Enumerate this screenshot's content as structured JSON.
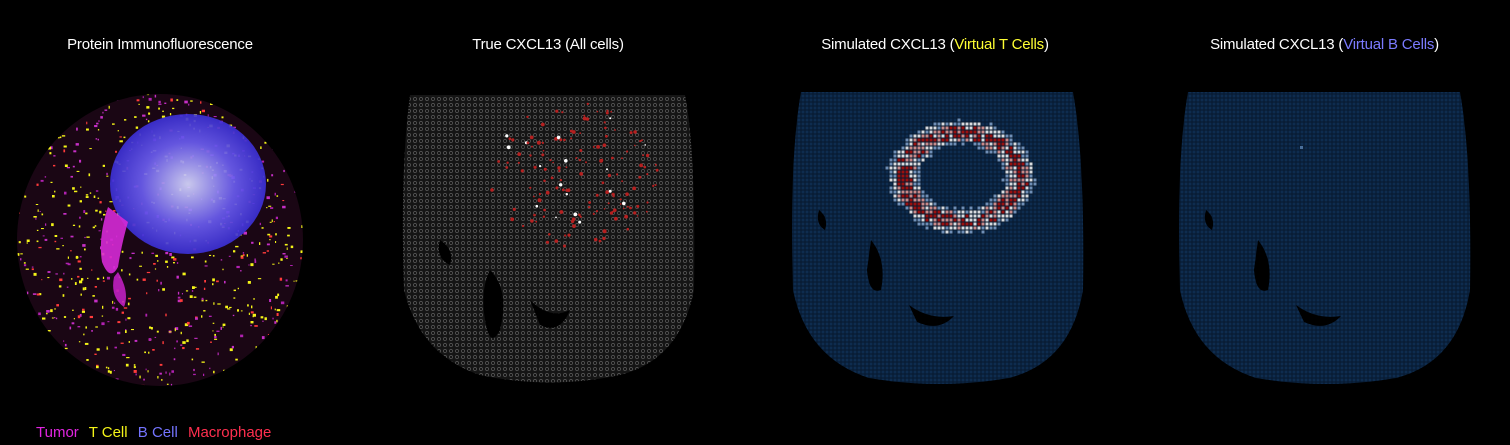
{
  "panels": [
    {
      "title_parts": [
        {
          "text": "Protein Immunofluorescence",
          "color": "#ffffff"
        }
      ]
    },
    {
      "title_parts": [
        {
          "text": "True CXCL13 (All cells)",
          "color": "#ffffff"
        }
      ]
    },
    {
      "title_parts": [
        {
          "text": "Simulated CXCL13 (",
          "color": "#ffffff"
        },
        {
          "text": "Virtual T Cells",
          "color": "#ffff33"
        },
        {
          "text": ")",
          "color": "#ffffff"
        }
      ]
    },
    {
      "title_parts": [
        {
          "text": "Simulated CXCL13 (",
          "color": "#ffffff"
        },
        {
          "text": "Virtual B Cells",
          "color": "#7b7bff"
        },
        {
          "text": ")",
          "color": "#ffffff"
        }
      ]
    }
  ],
  "legend": [
    {
      "label": "Tumor",
      "color": "#e025e0"
    },
    {
      "label": "T Cell",
      "color": "#f4f418"
    },
    {
      "label": "B Cell",
      "color": "#7474ff"
    },
    {
      "label": "Macrophage",
      "color": "#ff2f4f"
    }
  ],
  "colors": {
    "background": "#000000",
    "grid_cell": "#0e2c4f",
    "grid_gap": "#07182d",
    "hot": "#9a1010",
    "warm": "#d8dbe0"
  }
}
